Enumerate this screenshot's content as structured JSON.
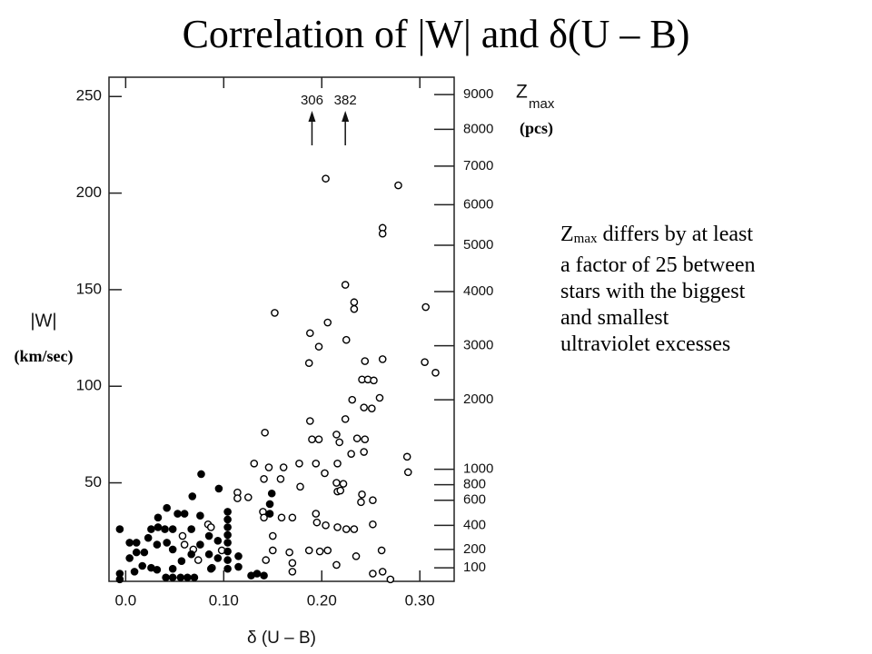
{
  "chart_data": {
    "type": "scatter",
    "title": "Correlation of  |W|  and  δ(U – B)",
    "xlabel": "δ (U – B)",
    "ylabel": "|W|",
    "ylabel_unit": "(km/sec)",
    "xlim": [
      -0.017,
      0.335
    ],
    "ylim": [
      -1,
      260
    ],
    "xticks": [
      {
        "value": 0,
        "label": "0.0"
      },
      {
        "value": 0.1,
        "label": "0.10"
      },
      {
        "value": 0.2,
        "label": "0.20"
      },
      {
        "value": 0.3,
        "label": "0.30"
      }
    ],
    "yticks": [
      50,
      100,
      150,
      200,
      250
    ],
    "zmax_label": "Z",
    "zmax_sub": "max",
    "zmax_unit": "(pcs)",
    "zmax_ticks": [
      {
        "value": 9000,
        "w": 251
      },
      {
        "value": 8000,
        "w": 233
      },
      {
        "value": 7000,
        "w": 214
      },
      {
        "value": 6000,
        "w": 194
      },
      {
        "value": 5000,
        "w": 173
      },
      {
        "value": 4000,
        "w": 149
      },
      {
        "value": 3000,
        "w": 121
      },
      {
        "value": 2000,
        "w": 93
      },
      {
        "value": 1000,
        "w": 57
      },
      {
        "value": 800,
        "w": 49
      },
      {
        "value": 600,
        "w": 41
      },
      {
        "value": 400,
        "w": 28
      },
      {
        "value": 200,
        "w": 15.5
      },
      {
        "value": 100,
        "w": 6
      }
    ],
    "arrows": [
      {
        "label": "306",
        "x": 0.19
      },
      {
        "label": "382",
        "x": 0.224
      }
    ],
    "series": [
      {
        "marker": "open",
        "color": "#000",
        "x": [
          0.204,
          0.278,
          0.262,
          0.262,
          0.224,
          0.233,
          0.233,
          0.152,
          0.306,
          0.206,
          0.188,
          0.225,
          0.197,
          0.262,
          0.244,
          0.187,
          0.305,
          0.316,
          0.241,
          0.247,
          0.253,
          0.231,
          0.259,
          0.243,
          0.251,
          0.224,
          0.188,
          0.142,
          0.19,
          0.197,
          0.215,
          0.218,
          0.236,
          0.244,
          0.23,
          0.243,
          0.287,
          0.288,
          0.131,
          0.146,
          0.161,
          0.177,
          0.194,
          0.216,
          0.141,
          0.158,
          0.203,
          0.215,
          0.222,
          0.216,
          0.219,
          0.178,
          0.241,
          0.252,
          0.24,
          0.114,
          0.114,
          0.125,
          0.14,
          0.141,
          0.159,
          0.17,
          0.194,
          0.195,
          0.204,
          0.216,
          0.225,
          0.233,
          0.252,
          0.15,
          0.15,
          0.143,
          0.167,
          0.17,
          0.17,
          0.187,
          0.198,
          0.206,
          0.215,
          0.235,
          0.261,
          0.252,
          0.262,
          0.27,
          0.084,
          0.087,
          0.058,
          0.06,
          0.069,
          0.074,
          0.088,
          0.098
        ],
        "y": [
          207.5,
          204,
          182,
          179,
          152.5,
          143.5,
          140,
          138,
          141,
          133,
          127.5,
          124,
          120.5,
          114,
          113,
          112,
          112.5,
          107,
          103.5,
          103.5,
          103,
          93,
          94,
          89,
          88.5,
          83,
          82,
          76,
          72.5,
          72.5,
          75,
          71,
          73,
          72.5,
          65,
          66,
          63.5,
          55.5,
          60,
          58,
          58,
          60,
          60,
          60,
          52,
          52,
          55,
          50,
          49.5,
          45.5,
          46,
          48,
          44,
          41,
          40,
          45,
          42,
          42.5,
          35,
          32,
          32,
          32,
          34,
          29.5,
          28,
          27,
          26,
          26,
          28.5,
          22.5,
          15,
          10,
          14,
          8.5,
          4,
          15,
          14.5,
          15,
          7.5,
          12,
          15,
          3,
          4,
          0,
          28.5,
          27,
          22.5,
          18,
          15.5,
          10,
          6,
          15
        ]
      },
      {
        "marker": "filled",
        "color": "#000",
        "x": [
          -0.006,
          0.042,
          0.068,
          0.077,
          0.095,
          0.053,
          0.06,
          0.076,
          0.104,
          0.104,
          0.104,
          0.104,
          0.104,
          0.104,
          0.104,
          0.104,
          0.149,
          0.147,
          0.147,
          0.033,
          0.033,
          0.04,
          0.026,
          0.048,
          0.067,
          0.004,
          0.011,
          0.011,
          0.019,
          0.004,
          -0.006,
          -0.006,
          0.009,
          0.017,
          0.026,
          0.032,
          0.041,
          0.048,
          0.056,
          0.063,
          0.07,
          0.048,
          0.057,
          0.067,
          0.076,
          0.085,
          0.087,
          0.115,
          0.115,
          0.128,
          0.134,
          0.141,
          0.023,
          0.032,
          0.042,
          0.048,
          0.085,
          0.094,
          0.094
        ],
        "y": [
          26,
          37,
          43,
          54.5,
          47,
          34,
          34,
          33,
          35,
          31,
          27,
          23,
          19,
          14.5,
          10,
          5.5,
          44.5,
          39,
          34,
          32,
          27,
          26,
          26,
          26,
          26,
          19,
          19,
          14,
          14,
          11,
          3,
          0,
          4,
          7,
          6,
          5,
          1,
          1,
          1,
          1,
          1,
          5.5,
          9.5,
          13,
          18,
          13,
          5.5,
          12,
          6.5,
          2,
          3,
          2,
          21.5,
          18,
          19,
          15.5,
          22.5,
          20,
          11
        ]
      }
    ]
  },
  "note": {
    "symbol": "Z",
    "subscript": "max",
    "lines": [
      "differs by at least",
      "a factor of 25 between",
      "stars with the biggest",
      "and smallest",
      "ultraviolet excesses"
    ]
  }
}
